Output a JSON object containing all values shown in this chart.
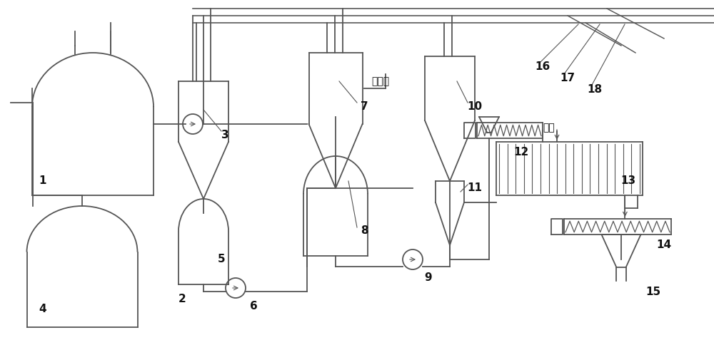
{
  "bg_color": "#ffffff",
  "line_color": "#555555",
  "label_color": "#111111"
}
